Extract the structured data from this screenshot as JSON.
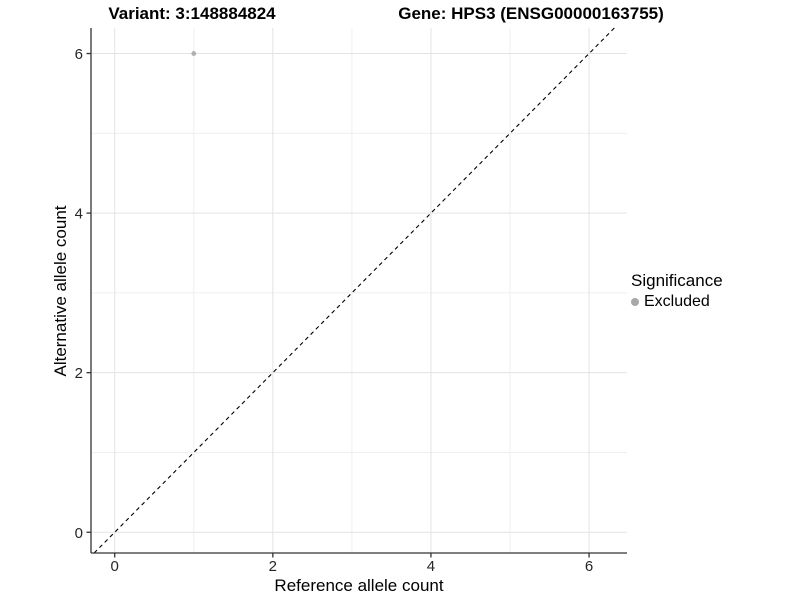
{
  "chart_data": {
    "type": "scatter",
    "titles": {
      "left": "Variant: 3:148884824",
      "right": "Gene: HPS3 (ENSG00000163755)"
    },
    "xlabel": "Reference allele count",
    "ylabel": "Alternative allele count",
    "xlim": [
      -0.3,
      6.48
    ],
    "ylim": [
      -0.26,
      6.32
    ],
    "xticks": [
      0,
      2,
      4,
      6
    ],
    "yticks": [
      0,
      2,
      4,
      6
    ],
    "minor_ticks": [
      1,
      3,
      5
    ],
    "grid": true,
    "points": [
      {
        "x": 1,
        "y": 6,
        "significance": "Excluded"
      }
    ],
    "identity_line": {
      "slope": 1,
      "intercept": 0,
      "style": "dashed"
    },
    "legend": {
      "title": "Significance",
      "position": "right",
      "items": [
        {
          "label": "Excluded",
          "color": "#a8a8a8"
        }
      ]
    },
    "colors": {
      "point": "#b0b0b0",
      "grid_major": "#e3e3e3",
      "grid_minor": "#efefef",
      "axis": "#333333",
      "line": "#000000"
    }
  }
}
